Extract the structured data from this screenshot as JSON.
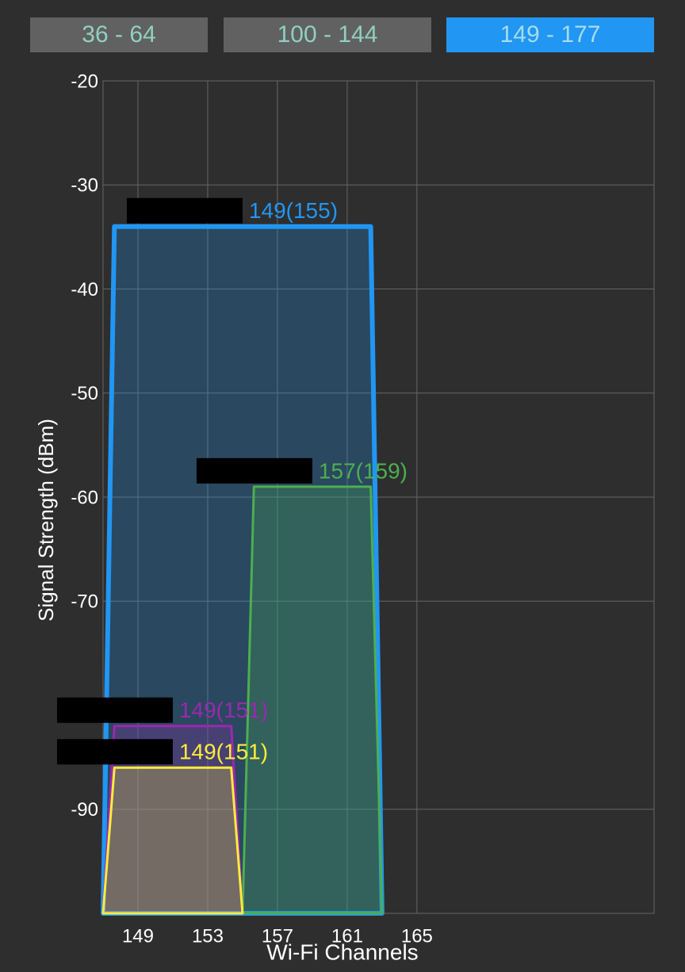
{
  "tabs": {
    "items": [
      "36 - 64",
      "100 - 144",
      "149 - 177"
    ],
    "active": 2
  },
  "chart_data": {
    "type": "wifi-channels",
    "y_label": "Signal Strength (dBm)",
    "x_label": "Wi-Fi Channels",
    "ylim": [
      -100,
      -20
    ],
    "yticks": [
      -20,
      -30,
      -40,
      -50,
      -60,
      -70,
      -90
    ],
    "xlim": [
      147,
      178.6
    ],
    "xticks": [
      149,
      153,
      157,
      161,
      165
    ],
    "grid": true,
    "series": [
      {
        "name": "149(155)",
        "color": "#2196f3",
        "x": [
          147,
          163
        ],
        "value": -34
      },
      {
        "name": "157(159)",
        "color": "#4caf50",
        "x": [
          155,
          163
        ],
        "value": -59
      },
      {
        "name": "149(151)",
        "color": "#9c27b0",
        "x": [
          147,
          155
        ],
        "value": -82
      },
      {
        "name": "149(151)",
        "color": "#ffeb3b",
        "x": [
          147,
          155
        ],
        "value": -86
      }
    ]
  }
}
